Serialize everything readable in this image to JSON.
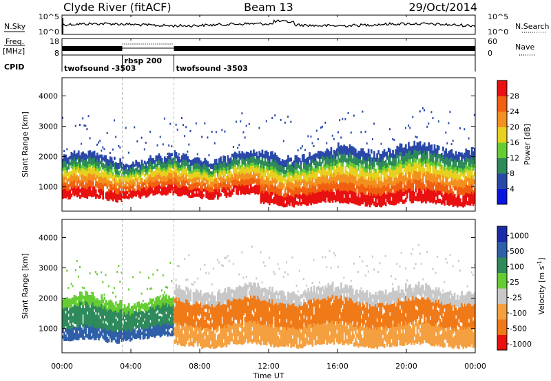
{
  "header": {
    "title_left": "Clyde River (fitACF)",
    "title_center": "Beam 13",
    "title_right": "29/Oct/2014"
  },
  "aux_panels": {
    "nsky_label": "N.Sky",
    "nsky_ticks": [
      "10^5",
      "10^0"
    ],
    "nsearch_label": "N.Search",
    "nsearch_ticks": [
      "10^5",
      "10^0"
    ],
    "freq_label_1": "Freq.",
    "freq_label_2": "[MHz]",
    "freq_ticks": [
      "18",
      "8"
    ],
    "nave_label": "Nave",
    "nave_ticks": [
      "60",
      "0"
    ],
    "cpid_label": "CPID",
    "cpid_segments": [
      {
        "name": "twofsound -3503",
        "start_hour": 0.0,
        "end_hour": 3.5
      },
      {
        "name": "rbsp 200",
        "start_hour": 3.5,
        "end_hour": 6.5
      },
      {
        "name": "twofsound -3503",
        "start_hour": 6.5,
        "end_hour": 24.0
      }
    ]
  },
  "x_axis": {
    "label": "Time UT",
    "ticks": [
      "00:00",
      "04:00",
      "08:00",
      "12:00",
      "16:00",
      "20:00",
      "00:00"
    ],
    "range_hours": [
      0,
      24
    ]
  },
  "chart_data": [
    {
      "type": "heatmap",
      "panel": "power",
      "ylabel": "Slant Range [km]",
      "yticks": [
        "1000",
        "2000",
        "3000",
        "4000"
      ],
      "ylim": [
        200,
        4600
      ],
      "colorbar_label": "Power [dB]",
      "colorbar_ticks": [
        "4",
        "8",
        "12",
        "16",
        "20",
        "24",
        "28"
      ],
      "colorbar_range": [
        0,
        32
      ],
      "colors": [
        "#0a14e0",
        "#2a48a8",
        "#2e8a5a",
        "#66cc33",
        "#e8d020",
        "#f29020",
        "#f06010",
        "#e81010"
      ],
      "bands": [
        {
          "start": 0.0,
          "end": 3.5,
          "range_km": [
            600,
            2000
          ],
          "level": 26
        },
        {
          "start": 3.5,
          "end": 6.5,
          "range_km": [
            700,
            1900
          ],
          "level": 25
        },
        {
          "start": 6.5,
          "end": 11.5,
          "range_km": [
            700,
            2000
          ],
          "level": 23
        },
        {
          "start": 11.5,
          "end": 16.0,
          "range_km": [
            450,
            2100
          ],
          "level": 24
        },
        {
          "start": 16.0,
          "end": 24.0,
          "range_km": [
            450,
            2300
          ],
          "level": 27
        }
      ]
    },
    {
      "type": "heatmap",
      "panel": "velocity",
      "ylabel": "Slant Range [km]",
      "yticks": [
        "1000",
        "2000",
        "3000",
        "4000"
      ],
      "ylim": [
        200,
        4600
      ],
      "colorbar_label": "Velocity [m s^-1]",
      "colorbar_ticks": [
        "1000",
        "500",
        "100",
        "25",
        "-25",
        "-100",
        "-500",
        "-1000"
      ],
      "colors": [
        "#1a2aa8",
        "#2f5fa8",
        "#2e8a5a",
        "#66cc33",
        "#c8c8c8",
        "#f5a040",
        "#f07a18",
        "#e81010"
      ],
      "bands": [
        {
          "start": 0.0,
          "end": 3.5,
          "range_km": [
            600,
            2000
          ],
          "velocity": 150
        },
        {
          "start": 3.5,
          "end": 6.5,
          "range_km": [
            700,
            1900
          ],
          "velocity": 120
        },
        {
          "start": 6.5,
          "end": 24.0,
          "range_km": [
            450,
            2300
          ],
          "velocity": -200
        }
      ]
    }
  ]
}
